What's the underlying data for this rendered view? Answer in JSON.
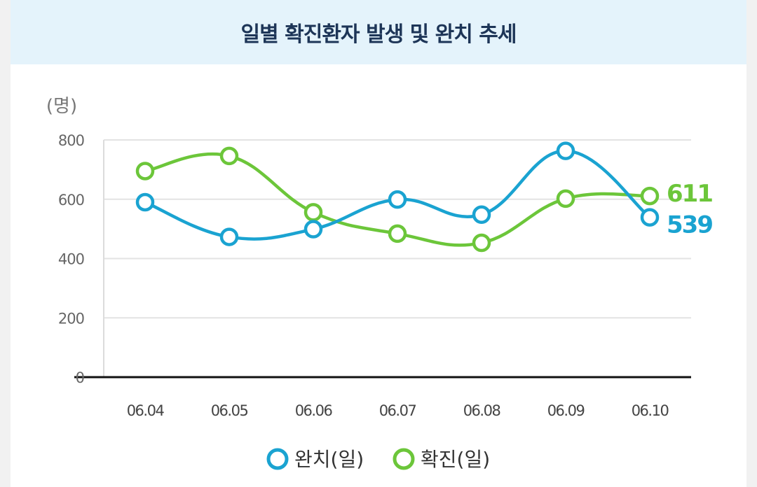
{
  "chart_data": {
    "type": "line",
    "title": "일별 확진환자 발생 및 완치 추세",
    "ylabel": "(명)",
    "xlabel": "",
    "categories": [
      "06.04",
      "06.05",
      "06.06",
      "06.07",
      "06.08",
      "06.09",
      "06.10"
    ],
    "ylim": [
      0,
      800
    ],
    "yticks": [
      0,
      200,
      400,
      600,
      800
    ],
    "grid": true,
    "legend_position": "bottom-center",
    "series": [
      {
        "name": "완치(일)",
        "color": "#1aa3d1",
        "values": [
          590,
          473,
          499,
          599,
          548,
          763,
          539
        ],
        "end_label": "539"
      },
      {
        "name": "확진(일)",
        "color": "#6cc63a",
        "values": [
          695,
          746,
          556,
          484,
          453,
          602,
          611
        ],
        "end_label": "611"
      }
    ]
  }
}
